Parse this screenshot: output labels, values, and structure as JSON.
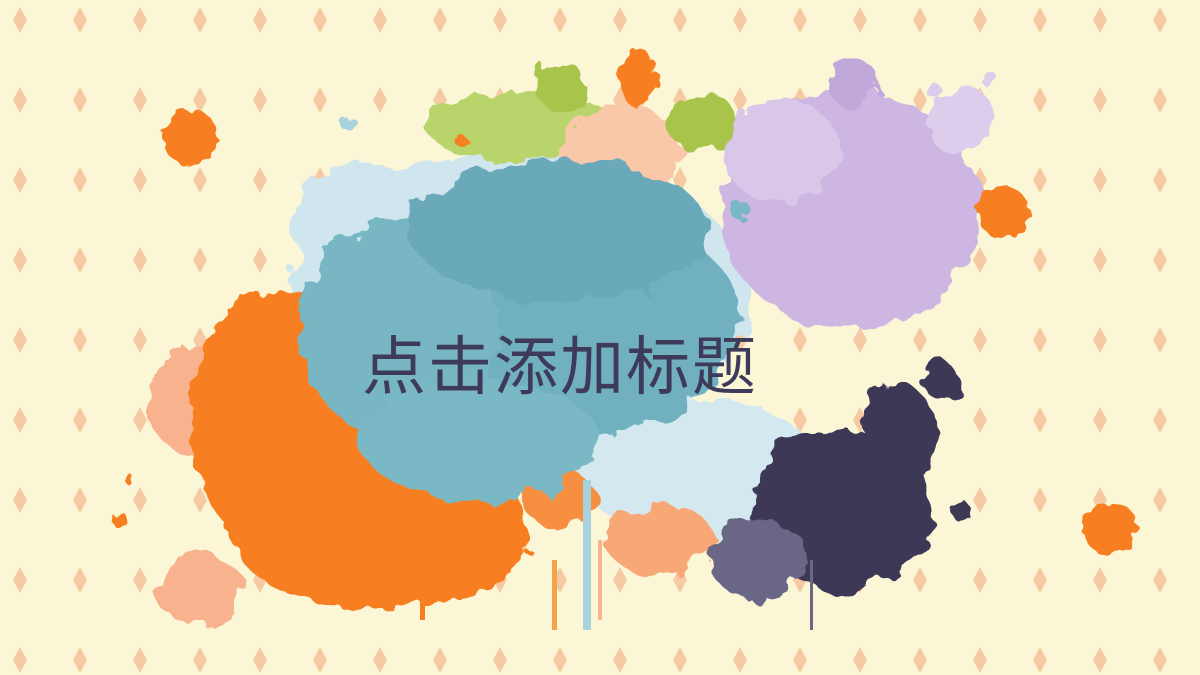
{
  "slide": {
    "title_placeholder": "点击添加标题"
  },
  "colors": {
    "background": "#fbf6d6",
    "diamond": "#f6caa3",
    "teal": "#6fb0bf",
    "light_blue": "#cfe6ee",
    "purple": "#cdb6e1",
    "navy": "#3c3756",
    "orange": "#f77f22",
    "peach": "#f8b28d",
    "green": "#a9c44c",
    "title_text": "#3d3a5a"
  }
}
